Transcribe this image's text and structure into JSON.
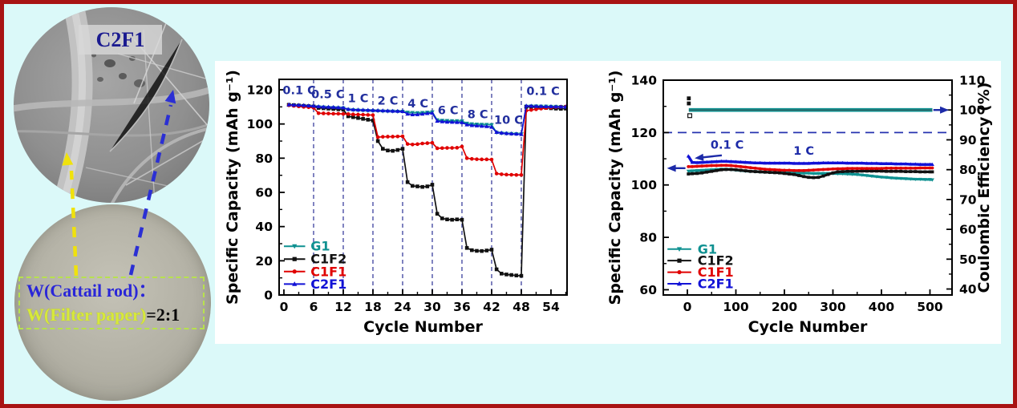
{
  "frame": {
    "bg": "#dbf9f9",
    "border_color": "#a81313",
    "panel_bg": "#ffffff"
  },
  "left_panel": {
    "sem_label": "C2F1",
    "ratio_line1": "W(Cattail rod)：",
    "ratio_line2_green": "W(Filter paper)",
    "ratio_line2_black": "=2:1",
    "colors": {
      "sem_label_text": "#1b1b90",
      "ratio_blue": "#2a26d8",
      "ratio_green": "#d7e93a",
      "box_dash": "#b7e14e",
      "arrow_yellow": "#f0e20c",
      "arrow_blue": "#2b2fd4"
    }
  },
  "chart_data": [
    {
      "id": "rate",
      "type": "line",
      "title": "",
      "xlabel": "Cycle Number",
      "ylabel": "Specific Capacity (mAh g⁻¹)",
      "xlim": [
        -0.97,
        57.25
      ],
      "ylim": [
        0,
        126.1
      ],
      "xticks": [
        0,
        6,
        12,
        18,
        24,
        30,
        36,
        42,
        48,
        54
      ],
      "xminor": [
        3,
        9,
        15,
        21,
        27,
        33,
        39,
        45,
        51,
        57
      ],
      "yticks": [
        0,
        20,
        40,
        60,
        80,
        100,
        120
      ],
      "yminor": [
        10,
        30,
        50,
        70,
        90,
        110
      ],
      "vlines": [
        6,
        12,
        18,
        24,
        30,
        36,
        42,
        48
      ],
      "vline_color": "#6064b0",
      "annotation_color": "#222f9e",
      "labels": [
        {
          "text": "0.1 C",
          "x": 3.1,
          "y": 117.5
        },
        {
          "text": "0.5 C",
          "x": 8.9,
          "y": 115.0
        },
        {
          "text": "1 C",
          "x": 15.0,
          "y": 112.8
        },
        {
          "text": "2 C",
          "x": 21.0,
          "y": 111.3
        },
        {
          "text": "4 C",
          "x": 27.1,
          "y": 109.6
        },
        {
          "text": "6 C",
          "x": 33.2,
          "y": 105.6
        },
        {
          "text": "8 C",
          "x": 39.2,
          "y": 103.4
        },
        {
          "text": "10 C",
          "x": 45.4,
          "y": 100.0
        },
        {
          "text": "0.1 C",
          "x": 52.4,
          "y": 117.0
        }
      ],
      "legend": {
        "x1": 0,
        "x2": 4.3,
        "tx": 5.4,
        "ys": [
          28.5,
          21.0,
          13.7,
          6.4
        ]
      },
      "series": [
        {
          "name": "G1",
          "color": "#0f9191",
          "marker": "td",
          "x_start": 1,
          "y": [
            111,
            111,
            110.8,
            110.6,
            110.4,
            110.3,
            110,
            109.8,
            109.6,
            109.5,
            109.4,
            109.3,
            108.4,
            108.2,
            108,
            107.9,
            107.8,
            107.7,
            107.6,
            107.5,
            107.4,
            107.4,
            107.3,
            107.3,
            106.8,
            106.6,
            106.5,
            106.6,
            106.8,
            107,
            102.3,
            102,
            101.9,
            101.8,
            101.8,
            101.7,
            100.3,
            100,
            99.8,
            99.7,
            99.6,
            99.5,
            95,
            94.6,
            94.4,
            94.3,
            94.2,
            94.1,
            110.3,
            110.4,
            110.4,
            110.3,
            110.3,
            110.2,
            110.2,
            110.1,
            110.1
          ]
        },
        {
          "name": "C1F2",
          "color": "#111111",
          "marker": "sq",
          "x_start": 1,
          "y": [
            111.2,
            111,
            110.8,
            110.6,
            110.4,
            110.2,
            109.4,
            109.2,
            109,
            108.8,
            108.6,
            108.4,
            104.5,
            104,
            103.5,
            103,
            102.5,
            102,
            90,
            85.5,
            84.5,
            84.3,
            84.8,
            85.5,
            66,
            63.8,
            63.5,
            63.2,
            63.5,
            64.5,
            47.5,
            44.8,
            44.2,
            44,
            44.2,
            44,
            27.5,
            26.2,
            25.8,
            25.7,
            26,
            26.5,
            15,
            12.5,
            12,
            11.7,
            11.4,
            11.2,
            110,
            110,
            109.8,
            109.6,
            109.4,
            109.2,
            109,
            108.9,
            109
          ]
        },
        {
          "name": "C1F1",
          "color": "#e00000",
          "marker": "ci",
          "x_start": 1,
          "y": [
            111,
            110.6,
            110.3,
            110,
            109.8,
            109.5,
            106.3,
            106.2,
            106.1,
            106,
            106,
            105.9,
            105.8,
            105.6,
            105.5,
            105.4,
            105.3,
            105.2,
            92.3,
            92.5,
            92.6,
            92.6,
            92.7,
            92.8,
            88.3,
            88,
            88.2,
            88.6,
            88.8,
            89,
            85.8,
            85.9,
            86,
            86,
            86.1,
            86.8,
            80,
            79.6,
            79.4,
            79.3,
            79.3,
            79.2,
            71,
            70.6,
            70.4,
            70.3,
            70.2,
            70.2,
            107.8,
            108.2,
            108.6,
            109,
            109.3,
            109.6,
            109.8,
            110,
            110.2
          ]
        },
        {
          "name": "C2F1",
          "color": "#1212d6",
          "marker": "tu",
          "x_start": 1,
          "y": [
            111.3,
            111.1,
            111,
            110.9,
            110.7,
            110.5,
            110.2,
            110,
            109.9,
            109.8,
            109.6,
            109.5,
            108.6,
            108.4,
            108.3,
            108.2,
            108.1,
            108,
            107.9,
            107.8,
            107.7,
            107.6,
            107.5,
            107.4,
            105.9,
            105.5,
            105.6,
            105.9,
            106.2,
            106.4,
            101.7,
            101.4,
            101.2,
            101.1,
            101,
            100.9,
            99.6,
            99.2,
            99,
            98.8,
            98.6,
            98.2,
            95.2,
            94.8,
            94.5,
            94.3,
            94.2,
            94,
            110.6,
            110.5,
            110.4,
            110.3,
            110.2,
            110.2,
            110.1,
            110.1,
            110
          ]
        }
      ]
    },
    {
      "id": "cycling",
      "type": "line",
      "title": "",
      "xlabel": "Cycle Number",
      "ylabel": "Specific Capacity (mAh g⁻¹)",
      "y2label": "Coulombic Efficiency (%)",
      "xlim": [
        -49.6,
        545.5
      ],
      "ylim": [
        58,
        140
      ],
      "y2lim": [
        38,
        110
      ],
      "xticks": [
        0,
        100,
        200,
        300,
        400,
        500
      ],
      "xminor": [
        50,
        150,
        250,
        350,
        450
      ],
      "yticks": [
        60,
        80,
        100,
        120,
        140
      ],
      "yminor": [
        70,
        90,
        110,
        130
      ],
      "y2ticks": [
        40,
        50,
        60,
        70,
        80,
        90,
        100,
        110
      ],
      "y2minor": [
        45,
        55,
        65,
        75,
        85,
        95,
        105
      ],
      "hlines": [
        120
      ],
      "hline_color": "#2733b0",
      "annotation_color": "#1c2aa8",
      "labels": [
        {
          "text": "0.1 C",
          "x": 82,
          "y": 113.8
        },
        {
          "text": "1 C",
          "x": 240,
          "y": 111.6
        }
      ],
      "arrows": [
        {
          "x1": 71,
          "y1": 111.3,
          "x2": 15,
          "y2": 110.2,
          "axis": "left"
        },
        {
          "x1": -4,
          "y1": 106.4,
          "x2": -42,
          "y2": 106.4,
          "axis": "left"
        },
        {
          "x1": 507,
          "y1": 100,
          "x2": 539,
          "y2": 100,
          "axis": "right"
        }
      ],
      "legend": {
        "x1": -41,
        "x2": 8,
        "tx": 21,
        "ys": [
          75.5,
          71.1,
          66.7,
          62.3
        ]
      },
      "series": [
        {
          "name": "efficiency-band",
          "legend": false,
          "color": "#0f9191",
          "lw": 4.6,
          "axis": "right",
          "marker": "none",
          "x": [
            3,
            505
          ],
          "y": [
            100,
            100
          ]
        },
        {
          "name": "efficiency-core",
          "legend": false,
          "color": "#3f5050",
          "lw": 1.0,
          "axis": "right",
          "marker": "none",
          "x": [
            3,
            505
          ],
          "y": [
            100,
            100
          ]
        },
        {
          "name": "G1",
          "color": "#0f9191",
          "marker": "td",
          "lw": 3.2,
          "x": [
            2,
            10,
            20,
            30,
            40,
            50,
            60,
            70,
            80,
            90,
            100,
            110,
            120,
            130,
            140,
            150,
            160,
            170,
            180,
            190,
            200,
            210,
            220,
            230,
            240,
            250,
            260,
            270,
            280,
            290,
            300,
            310,
            320,
            330,
            340,
            350,
            360,
            370,
            380,
            390,
            400,
            410,
            420,
            430,
            440,
            450,
            460,
            470,
            480,
            490,
            500,
            505
          ],
          "y": [
            105.3,
            105.4,
            105.5,
            105.6,
            105.7,
            105.8,
            105.9,
            106,
            106,
            105.9,
            105.7,
            105.5,
            105.3,
            105.2,
            105.1,
            105,
            104.9,
            104.8,
            104.8,
            104.7,
            104.7,
            104.6,
            104.6,
            104.5,
            104.5,
            104.5,
            104.4,
            104.4,
            104.4,
            104.4,
            104.4,
            104.3,
            104.3,
            104.2,
            104.1,
            104,
            103.8,
            103.6,
            103.4,
            103.2,
            103,
            102.9,
            102.7,
            102.6,
            102.5,
            102.4,
            102.3,
            102.2,
            102.2,
            102.1,
            102.1,
            102
          ]
        },
        {
          "name": "C1F2",
          "color": "#111111",
          "marker": "sq",
          "lw": 3.2,
          "x": [
            2,
            10,
            20,
            30,
            40,
            50,
            60,
            70,
            80,
            90,
            100,
            110,
            120,
            130,
            140,
            150,
            160,
            170,
            180,
            190,
            200,
            210,
            220,
            230,
            240,
            250,
            260,
            270,
            280,
            290,
            300,
            310,
            320,
            330,
            340,
            350,
            360,
            370,
            380,
            390,
            400,
            410,
            420,
            430,
            440,
            450,
            460,
            470,
            480,
            490,
            500,
            505
          ],
          "y": [
            104.2,
            104.3,
            104.4,
            104.6,
            104.9,
            105.2,
            105.5,
            105.8,
            105.9,
            105.9,
            105.8,
            105.6,
            105.4,
            105.2,
            105.1,
            105,
            104.9,
            104.8,
            104.7,
            104.6,
            104.4,
            104.2,
            104,
            103.6,
            103.2,
            102.9,
            102.8,
            102.9,
            103.4,
            104,
            104.6,
            105,
            105.1,
            105.2,
            105.2,
            105.2,
            105.3,
            105.3,
            105.3,
            105.3,
            105.3,
            105.2,
            105.2,
            105.2,
            105.2,
            105.1,
            105.1,
            105.1,
            105,
            105,
            105,
            105
          ]
        },
        {
          "name": "C1F1",
          "color": "#e00000",
          "marker": "ci",
          "lw": 3.2,
          "x": [
            2,
            10,
            20,
            30,
            40,
            50,
            60,
            70,
            80,
            90,
            100,
            110,
            120,
            130,
            140,
            150,
            160,
            170,
            180,
            190,
            200,
            210,
            220,
            230,
            240,
            250,
            260,
            270,
            280,
            290,
            300,
            310,
            320,
            330,
            340,
            350,
            360,
            370,
            380,
            390,
            400,
            410,
            420,
            430,
            440,
            450,
            460,
            470,
            480,
            490,
            500,
            505
          ],
          "y": [
            107,
            107,
            107.1,
            107.2,
            107.3,
            107.4,
            107.4,
            107.5,
            107.5,
            107.4,
            107.2,
            107,
            106.8,
            106.6,
            106.4,
            106.2,
            106,
            105.9,
            105.8,
            105.7,
            105.6,
            105.6,
            105.5,
            105.5,
            105.5,
            105.6,
            105.7,
            105.8,
            105.9,
            106,
            106.1,
            106.2,
            106.2,
            106.3,
            106.3,
            106.3,
            106.3,
            106.3,
            106.3,
            106.3,
            106.3,
            106.4,
            106.4,
            106.4,
            106.4,
            106.4,
            106.4,
            106.4,
            106.5,
            106.5,
            106.5,
            106.5
          ]
        },
        {
          "name": "C2F1",
          "color": "#1212d6",
          "marker": "tu",
          "lw": 3.4,
          "x": [
            2,
            10,
            20,
            30,
            40,
            50,
            60,
            70,
            80,
            90,
            100,
            110,
            120,
            130,
            140,
            150,
            160,
            170,
            180,
            190,
            200,
            210,
            220,
            230,
            240,
            250,
            260,
            270,
            280,
            290,
            300,
            310,
            320,
            330,
            340,
            350,
            360,
            370,
            380,
            390,
            400,
            410,
            420,
            430,
            440,
            450,
            460,
            470,
            480,
            490,
            500,
            505
          ],
          "y": [
            111,
            108.6,
            108.5,
            108.6,
            108.7,
            108.8,
            108.9,
            109,
            109,
            108.9,
            108.8,
            108.7,
            108.6,
            108.5,
            108.4,
            108.4,
            108.3,
            108.3,
            108.3,
            108.3,
            108.3,
            108.3,
            108.2,
            108.2,
            108.2,
            108.2,
            108.3,
            108.3,
            108.4,
            108.4,
            108.4,
            108.4,
            108.4,
            108.3,
            108.3,
            108.3,
            108.3,
            108.2,
            108.2,
            108.2,
            108.1,
            108.1,
            108.1,
            108,
            108,
            108,
            107.9,
            107.9,
            107.8,
            107.8,
            107.8,
            107.8
          ]
        },
        {
          "name": "eff-outliers",
          "legend": false,
          "color": "#111111",
          "axis": "right",
          "marker": "sq",
          "line": false,
          "msize": 2.4,
          "x": [
            3,
            3
          ],
          "y": [
            103.9,
            102.2
          ]
        },
        {
          "name": "eff-outlier-open",
          "legend": false,
          "color": "#111111",
          "axis": "right",
          "marker": "osq",
          "line": false,
          "msize": 2.4,
          "x": [
            5
          ],
          "y": [
            98.1
          ]
        }
      ]
    }
  ]
}
